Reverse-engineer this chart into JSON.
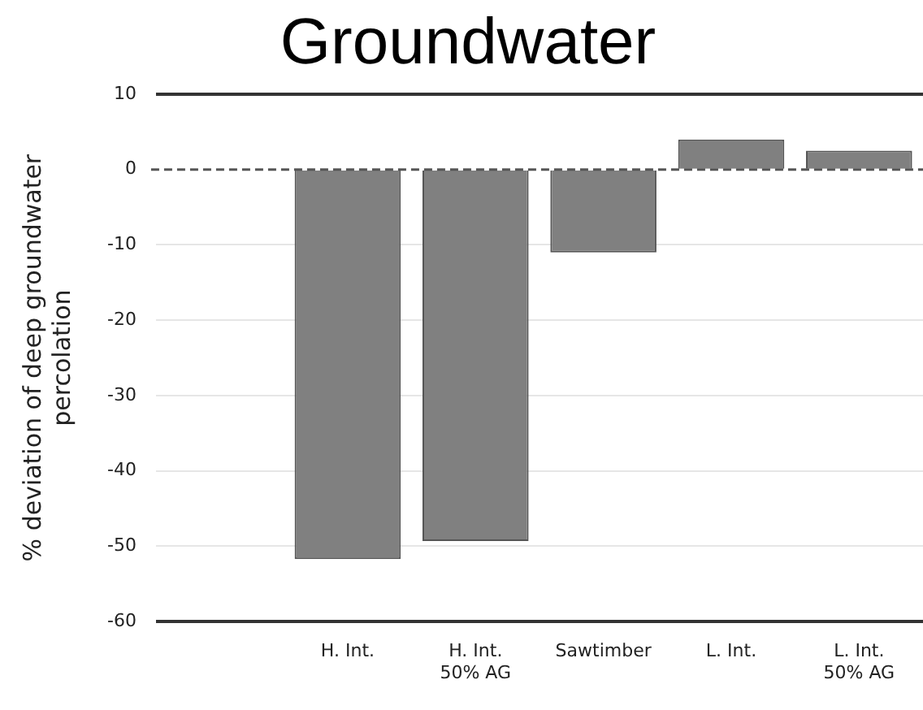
{
  "chart_data": {
    "type": "bar",
    "title": "Groundwater",
    "ylabel": "% deviation of deep groundwater\npercolation",
    "categories": [
      null,
      "H. Int.",
      "H. Int.\n50% AG",
      "Sawtimber",
      "L. Int.",
      "L. Int.\n50% AG"
    ],
    "values": [
      null,
      -51.7,
      -49.3,
      -11,
      4,
      2.5
    ],
    "color": "#808080",
    "ylim": [
      -60,
      10
    ],
    "yticks": [
      -60,
      -50,
      -40,
      -30,
      -20,
      -10,
      0,
      10
    ],
    "grid": "y",
    "ref_lines": [
      {
        "axis": "y",
        "value": 0,
        "color": "#555555",
        "line_style": "dashed"
      }
    ]
  }
}
